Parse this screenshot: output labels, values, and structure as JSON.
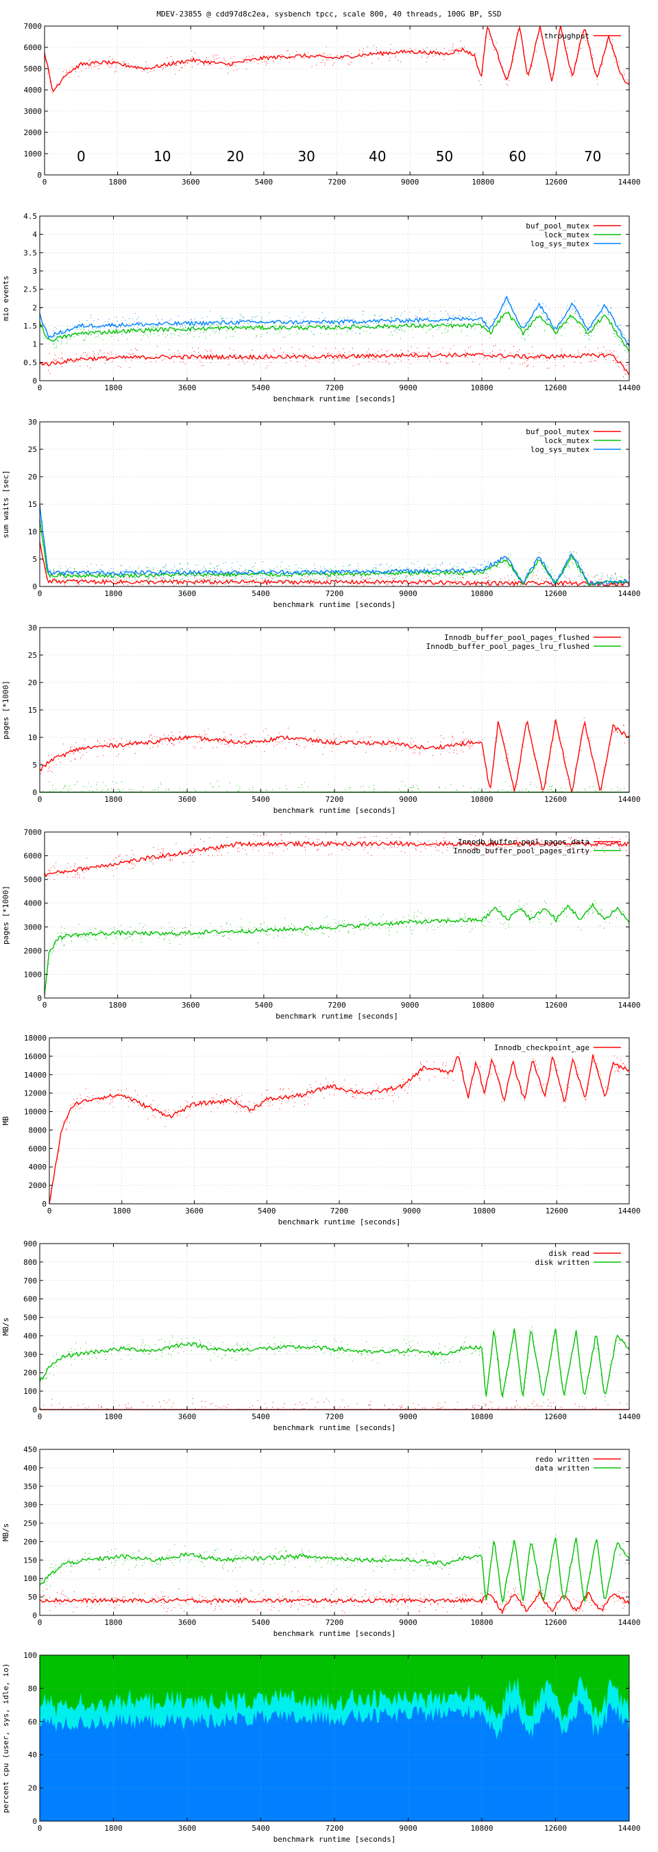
{
  "title": "MDEV-23855 @ cdd97d8c2ea, sysbench tpcc, scale 800, 40 threads, 100G BP, SSD",
  "colors": {
    "red": "#ff0000",
    "green": "#00c000",
    "blue": "#0080ff",
    "cyan": "#00eeee",
    "grid": "#a0a0a0"
  },
  "chart_data": [
    {
      "type": "line",
      "xlabel": "",
      "ylabel": "",
      "xlim": [
        0,
        14400
      ],
      "ylim": [
        0,
        7000
      ],
      "xticks": [
        0,
        1800,
        3600,
        5400,
        7200,
        9000,
        10800,
        12600,
        14400
      ],
      "yticks": [
        0,
        1000,
        2000,
        3000,
        4000,
        5000,
        6000,
        7000
      ],
      "legend_position": "top-right",
      "series": [
        {
          "name": "throughput",
          "color": "#ff0000",
          "x": [
            0,
            200,
            500,
            900,
            1500,
            2500,
            3600,
            4500,
            5400,
            6300,
            7200,
            8100,
            9000,
            9900,
            10300,
            10600,
            10750,
            10900,
            11400,
            11700,
            11900,
            12200,
            12500,
            12700,
            13000,
            13300,
            13600,
            13900,
            14200,
            14400
          ],
          "y": [
            5800,
            3900,
            4700,
            5200,
            5300,
            5000,
            5400,
            5200,
            5500,
            5600,
            5500,
            5700,
            5800,
            5700,
            5900,
            5600,
            4500,
            7000,
            4400,
            7000,
            4500,
            7000,
            4300,
            7000,
            4600,
            7000,
            4500,
            6500,
            4700,
            4200
          ]
        }
      ],
      "annotations": [
        {
          "text": "0",
          "x": 900
        },
        {
          "text": "10",
          "x": 2900
        },
        {
          "text": "20",
          "x": 4700
        },
        {
          "text": "30",
          "x": 6450
        },
        {
          "text": "40",
          "x": 8200
        },
        {
          "text": "50",
          "x": 9850
        },
        {
          "text": "60",
          "x": 11650
        },
        {
          "text": "70",
          "x": 13500
        }
      ]
    },
    {
      "type": "line",
      "xlabel": "benchmark runtime [seconds]",
      "ylabel": "mio events",
      "xlim": [
        0,
        14400
      ],
      "ylim": [
        0,
        4.5
      ],
      "xticks": [
        0,
        1800,
        3600,
        5400,
        7200,
        9000,
        10800,
        12600,
        14400
      ],
      "yticks": [
        0,
        0.5,
        1,
        1.5,
        2,
        2.5,
        3,
        3.5,
        4,
        4.5
      ],
      "legend_position": "top-right",
      "series": [
        {
          "name": "buf_pool_mutex",
          "color": "#ff0000",
          "x": [
            0,
            200,
            1000,
            3000,
            5000,
            7000,
            9000,
            10800,
            12000,
            14000,
            14400
          ],
          "y": [
            0.5,
            0.45,
            0.6,
            0.65,
            0.65,
            0.65,
            0.7,
            0.7,
            0.65,
            0.7,
            0.2
          ]
        },
        {
          "name": "lock_mutex",
          "color": "#00c000",
          "x": [
            0,
            200,
            1000,
            3000,
            5000,
            7000,
            9000,
            10800,
            11000,
            11400,
            11800,
            12200,
            12600,
            13000,
            13400,
            13800,
            14400
          ],
          "y": [
            1.6,
            1.1,
            1.3,
            1.4,
            1.45,
            1.45,
            1.5,
            1.5,
            1.3,
            1.9,
            1.3,
            1.8,
            1.3,
            1.8,
            1.3,
            1.8,
            0.8
          ]
        },
        {
          "name": "log_sys_mutex",
          "color": "#0080ff",
          "x": [
            0,
            200,
            1000,
            3000,
            5000,
            7000,
            9000,
            10800,
            11000,
            11400,
            11800,
            12200,
            12600,
            13000,
            13400,
            13800,
            14400
          ],
          "y": [
            1.8,
            1.2,
            1.5,
            1.55,
            1.6,
            1.6,
            1.65,
            1.7,
            1.4,
            2.3,
            1.4,
            2.1,
            1.4,
            2.1,
            1.4,
            2.1,
            0.9
          ]
        }
      ]
    },
    {
      "type": "line",
      "xlabel": "benchmark runtime [seconds]",
      "ylabel": "sum waits [sec]",
      "xlim": [
        0,
        14400
      ],
      "ylim": [
        0,
        30
      ],
      "xticks": [
        0,
        1800,
        3600,
        5400,
        7200,
        9000,
        10800,
        12600,
        14400
      ],
      "yticks": [
        0,
        5,
        10,
        15,
        20,
        25,
        30
      ],
      "legend_position": "top-right",
      "series": [
        {
          "name": "buf_pool_mutex",
          "color": "#ff0000",
          "x": [
            0,
            200,
            2000,
            4000,
            6000,
            9000,
            10800,
            14400
          ],
          "y": [
            8,
            1,
            0.8,
            0.8,
            0.8,
            0.8,
            0.6,
            0.5
          ]
        },
        {
          "name": "lock_mutex",
          "color": "#00c000",
          "x": [
            0,
            200,
            2000,
            4000,
            6000,
            9000,
            10800,
            11400,
            11800,
            12200,
            12600,
            13000,
            13400,
            14400
          ],
          "y": [
            12,
            2,
            2,
            2.2,
            2.2,
            2.4,
            2.5,
            5,
            0.5,
            5,
            0.5,
            5.5,
            0.5,
            1
          ]
        },
        {
          "name": "log_sys_mutex",
          "color": "#0080ff",
          "x": [
            0,
            200,
            2000,
            4000,
            6000,
            9000,
            10800,
            11400,
            11800,
            12200,
            12600,
            13000,
            13400,
            14400
          ],
          "y": [
            15,
            2.5,
            2.5,
            2.6,
            2.6,
            2.8,
            3,
            5.5,
            0.5,
            5.5,
            0.5,
            6,
            0.5,
            1
          ]
        }
      ]
    },
    {
      "type": "line",
      "xlabel": "benchmark runtime [seconds]",
      "ylabel": "pages [*1000]",
      "xlim": [
        0,
        14400
      ],
      "ylim": [
        0,
        30
      ],
      "xticks": [
        0,
        1800,
        3600,
        5400,
        7200,
        9000,
        10800,
        12600,
        14400
      ],
      "yticks": [
        0,
        5,
        10,
        15,
        20,
        25,
        30
      ],
      "legend_position": "top-right",
      "series": [
        {
          "name": "Innodb_buffer_pool_pages_flushed",
          "color": "#ff0000",
          "x": [
            0,
            300,
            1000,
            2500,
            3600,
            5000,
            6000,
            7200,
            8500,
            9500,
            10500,
            10800,
            11000,
            11200,
            11600,
            11900,
            12300,
            12600,
            13000,
            13300,
            13700,
            14000,
            14400
          ],
          "y": [
            4,
            6,
            8,
            9,
            10,
            9,
            10,
            9,
            9,
            8,
            9,
            9,
            0,
            13,
            0,
            13,
            0,
            13,
            0,
            13,
            0,
            12,
            10
          ]
        },
        {
          "name": "Innodb_buffer_pool_pages_lru_flushed",
          "color": "#00c000",
          "x": [
            0,
            14400
          ],
          "y": [
            0,
            0
          ]
        }
      ]
    },
    {
      "type": "line",
      "xlabel": "benchmark runtime [seconds]",
      "ylabel": "pages [*1000]",
      "xlim": [
        0,
        14400
      ],
      "ylim": [
        0,
        7000
      ],
      "xticks": [
        0,
        1800,
        3600,
        5400,
        7200,
        9000,
        10800,
        12600,
        14400
      ],
      "yticks": [
        0,
        1000,
        2000,
        3000,
        4000,
        5000,
        6000,
        7000
      ],
      "legend_position": "top-right",
      "series": [
        {
          "name": "Innodb_buffer_pool_pages_data",
          "color": "#ff0000",
          "x": [
            0,
            4800,
            14400
          ],
          "y": [
            5200,
            6500,
            6500
          ]
        },
        {
          "name": "Innodb_buffer_pool_pages_dirty",
          "color": "#00c000",
          "x": [
            0,
            100,
            300,
            600,
            1800,
            3000,
            3600,
            5400,
            7200,
            9000,
            10800,
            11100,
            11400,
            11700,
            12000,
            12300,
            12600,
            12900,
            13200,
            13500,
            13800,
            14100,
            14400
          ],
          "y": [
            100,
            1800,
            2500,
            2650,
            2750,
            2700,
            2750,
            2850,
            3000,
            3200,
            3300,
            3800,
            3300,
            3800,
            3300,
            3800,
            3300,
            3900,
            3300,
            3900,
            3300,
            3800,
            3200
          ]
        }
      ]
    },
    {
      "type": "line",
      "xlabel": "benchmark runtime [seconds]",
      "ylabel": "MB",
      "xlim": [
        0,
        14400
      ],
      "ylim": [
        0,
        18000
      ],
      "xticks": [
        0,
        1800,
        3600,
        5400,
        7200,
        9000,
        10800,
        12600,
        14400
      ],
      "yticks": [
        0,
        2000,
        4000,
        6000,
        8000,
        10000,
        12000,
        14000,
        16000,
        18000
      ],
      "legend_position": "top-right",
      "series": [
        {
          "name": "Innodb_checkpoint_age",
          "color": "#ff0000",
          "x": [
            0,
            300,
            600,
            1200,
            1800,
            2700,
            3000,
            3600,
            4500,
            5000,
            5400,
            6300,
            7000,
            7500,
            8000,
            8800,
            9300,
            10000,
            10150,
            10400,
            10600,
            10800,
            11000,
            11300,
            11500,
            11800,
            12000,
            12300,
            12500,
            12800,
            13000,
            13300,
            13500,
            13800,
            14000,
            14400
          ],
          "y": [
            0,
            8000,
            10800,
            11500,
            11800,
            10000,
            9500,
            10800,
            11200,
            10200,
            11300,
            11800,
            12800,
            12200,
            12000,
            12800,
            14800,
            14200,
            16200,
            11500,
            15500,
            12000,
            15800,
            11000,
            15500,
            11200,
            15800,
            11500,
            16000,
            11000,
            15800,
            11300,
            16000,
            11500,
            15200,
            14500
          ]
        }
      ]
    },
    {
      "type": "line",
      "xlabel": "benchmark runtime [seconds]",
      "ylabel": "MB/s",
      "xlim": [
        0,
        14400
      ],
      "ylim": [
        0,
        900
      ],
      "xticks": [
        0,
        1800,
        3600,
        5400,
        7200,
        9000,
        10800,
        12600,
        14400
      ],
      "yticks": [
        0,
        100,
        200,
        300,
        400,
        500,
        600,
        700,
        800,
        900
      ],
      "legend_position": "top-right",
      "series": [
        {
          "name": "disk read",
          "color": "#ff0000",
          "x": [
            0,
            14400
          ],
          "y": [
            0,
            0
          ]
        },
        {
          "name": "disk written",
          "color": "#00c000",
          "x": [
            0,
            200,
            600,
            1200,
            2000,
            2800,
            3600,
            4500,
            5400,
            6300,
            7200,
            8100,
            9000,
            9900,
            10300,
            10800,
            10900,
            11100,
            11300,
            11600,
            11800,
            12000,
            12300,
            12600,
            12800,
            13100,
            13300,
            13600,
            13800,
            14100,
            14400
          ],
          "y": [
            150,
            220,
            290,
            310,
            330,
            320,
            360,
            320,
            330,
            340,
            330,
            310,
            320,
            300,
            330,
            340,
            60,
            440,
            60,
            440,
            60,
            440,
            60,
            440,
            60,
            430,
            60,
            420,
            60,
            400,
            330
          ]
        }
      ]
    },
    {
      "type": "line",
      "xlabel": "benchmark runtime [seconds]",
      "ylabel": "MB/s",
      "xlim": [
        0,
        14400
      ],
      "ylim": [
        0,
        450
      ],
      "xticks": [
        0,
        1800,
        3600,
        5400,
        7200,
        9000,
        10800,
        12600,
        14400
      ],
      "yticks": [
        0,
        50,
        100,
        150,
        200,
        250,
        300,
        350,
        400,
        450
      ],
      "legend_position": "top-right",
      "series": [
        {
          "name": "redo written",
          "color": "#ff0000",
          "x": [
            0,
            1000,
            3600,
            7200,
            10800,
            11000,
            11300,
            11600,
            11900,
            12200,
            12500,
            12800,
            13100,
            13400,
            13700,
            14000,
            14400
          ],
          "y": [
            42,
            40,
            40,
            40,
            40,
            60,
            10,
            60,
            10,
            60,
            10,
            60,
            10,
            60,
            10,
            60,
            35
          ]
        },
        {
          "name": "data written",
          "color": "#00c000",
          "x": [
            0,
            200,
            600,
            1200,
            2000,
            2800,
            3600,
            4500,
            5400,
            6300,
            7200,
            8100,
            9000,
            9900,
            10300,
            10800,
            10900,
            11100,
            11300,
            11600,
            11800,
            12000,
            12300,
            12600,
            12800,
            13100,
            13300,
            13600,
            13800,
            14100,
            14400
          ],
          "y": [
            80,
            105,
            140,
            150,
            160,
            150,
            165,
            150,
            155,
            160,
            155,
            150,
            150,
            140,
            155,
            160,
            30,
            210,
            30,
            210,
            30,
            210,
            30,
            215,
            30,
            215,
            30,
            210,
            30,
            200,
            150
          ]
        }
      ]
    },
    {
      "type": "area",
      "xlabel": "benchmark runtime [seconds]",
      "ylabel": "percent cpu (user, sys, idle, io)",
      "xlim": [
        0,
        14400
      ],
      "ylim": [
        0,
        100
      ],
      "xticks": [
        0,
        1800,
        3600,
        5400,
        7200,
        9000,
        10800,
        12600,
        14400
      ],
      "yticks": [
        0,
        20,
        40,
        60,
        80,
        100
      ],
      "series": [
        {
          "name": "user",
          "color": "#0080ff",
          "x": [
            0,
            400,
            1800,
            3600,
            5400,
            7200,
            9000,
            10800,
            11200,
            11600,
            12000,
            12400,
            12800,
            13200,
            13600,
            14000,
            14400
          ],
          "y": [
            60,
            58,
            60,
            60,
            62,
            62,
            64,
            66,
            52,
            72,
            52,
            72,
            52,
            72,
            52,
            70,
            56
          ]
        },
        {
          "name": "sys",
          "color": "#00eeee",
          "x": [
            0,
            400,
            1800,
            3600,
            5400,
            7200,
            9000,
            10800,
            11200,
            11600,
            12000,
            12400,
            12800,
            13200,
            13600,
            14000,
            14400
          ],
          "y": [
            12,
            12,
            12,
            12,
            11,
            11,
            10,
            10,
            10,
            14,
            10,
            14,
            10,
            14,
            10,
            14,
            10
          ]
        },
        {
          "name": "idle",
          "color": "#00c000",
          "x": [
            0,
            14400
          ],
          "y": [
            28,
            28
          ]
        }
      ]
    }
  ]
}
